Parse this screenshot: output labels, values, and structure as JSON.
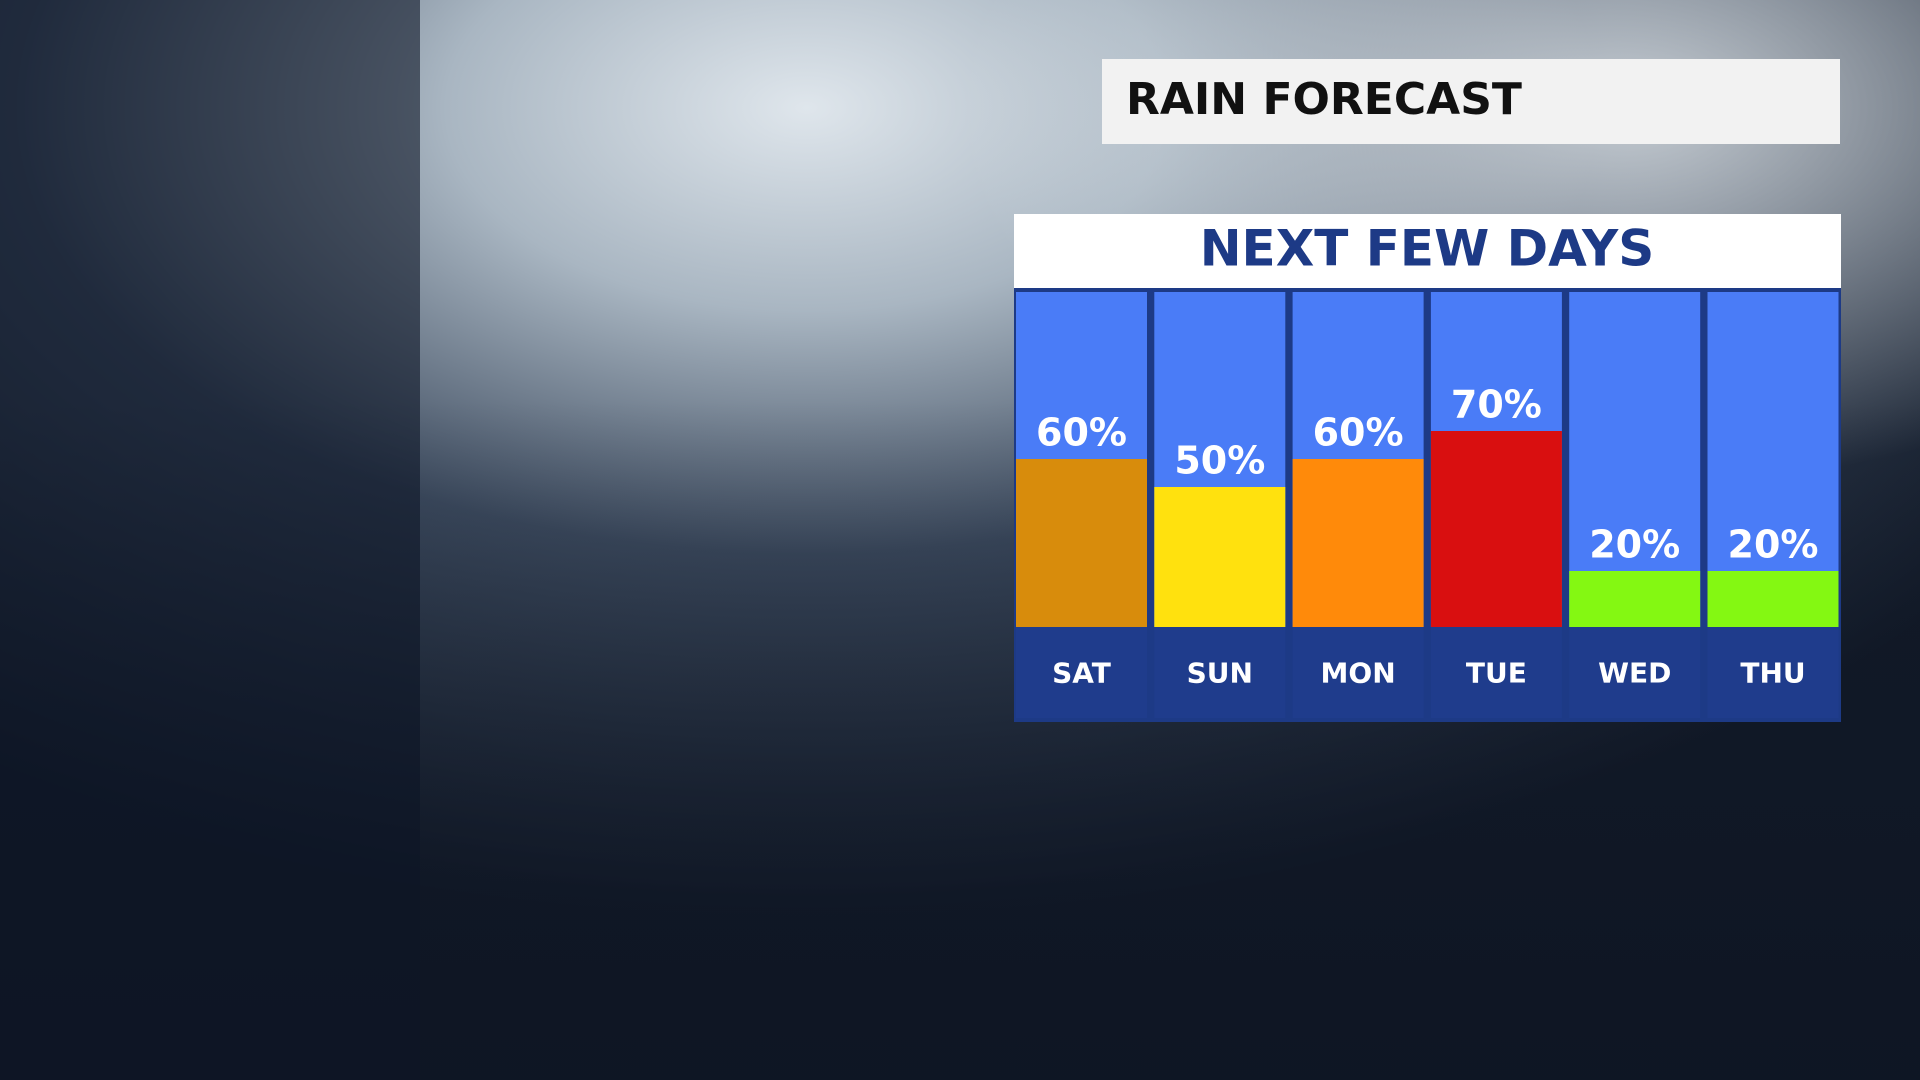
{
  "chart_data": {
    "type": "bar",
    "title": "RAIN FORECAST",
    "subtitle": "NEXT FEW DAYS",
    "categories": [
      "SAT",
      "SUN",
      "MON",
      "TUE",
      "WED",
      "THU"
    ],
    "values": [
      60,
      50,
      60,
      70,
      20,
      20
    ],
    "value_labels": [
      "60%",
      "50%",
      "60%",
      "70%",
      "20%",
      "20%"
    ],
    "colors": [
      "#d88c0c",
      "#ffe10e",
      "#ff8a0a",
      "#d90f10",
      "#84f812",
      "#84f812"
    ]
  }
}
